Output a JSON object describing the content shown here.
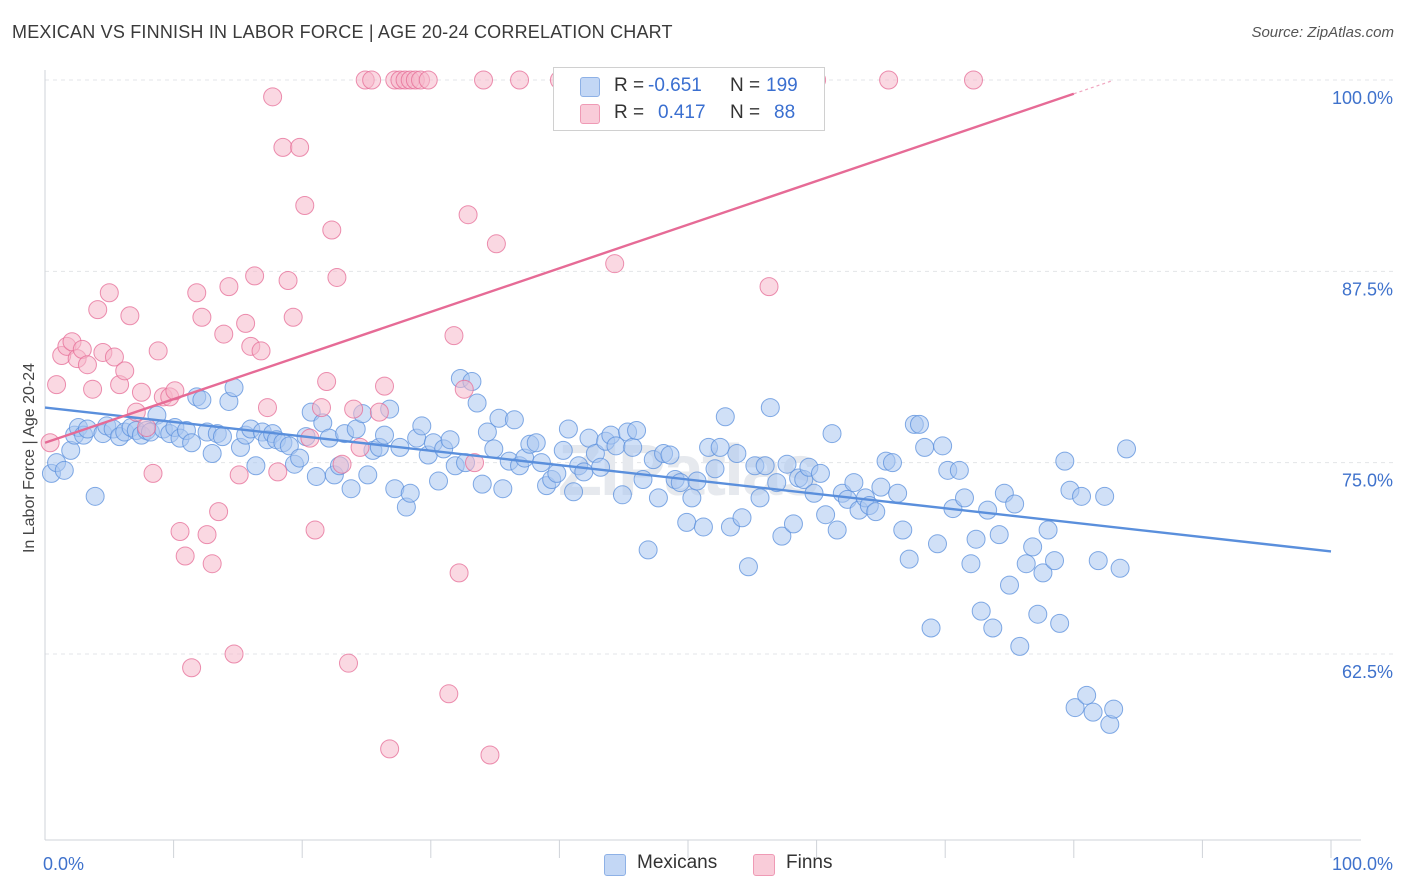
{
  "title": "MEXICAN VS FINNISH IN LABOR FORCE | AGE 20-24 CORRELATION CHART",
  "source": "Source: ZipAtlas.com",
  "watermark": "ZIPatlas",
  "legend": {
    "r_label": "R =",
    "n_label": "N =",
    "rows": [
      {
        "r": "-0.651",
        "n": "199",
        "color": "#a9c6f0"
      },
      {
        "r": "0.417",
        "n": "88",
        "color": "#f6b8cb"
      }
    ]
  },
  "bottom_legend": [
    {
      "label": "Mexicans",
      "color": "#a9c6f0"
    },
    {
      "label": "Finns",
      "color": "#f6b8cb"
    }
  ],
  "chart_data": {
    "type": "scatter",
    "title": "MEXICAN VS FINNISH IN LABOR FORCE | AGE 20-24 CORRELATION CHART",
    "xlabel": "",
    "ylabel": "In Labor Force | Age 20-24",
    "xlim": [
      0,
      100
    ],
    "ylim": [
      51.5,
      101
    ],
    "x_tick_labels": [
      "0.0%",
      "100.0%"
    ],
    "y_ticks": [
      62.5,
      75.0,
      87.5,
      100.0
    ],
    "y_tick_labels": [
      "62.5%",
      "75.0%",
      "87.5%",
      "100.0%"
    ],
    "grid": true,
    "legend_position": "top-center",
    "series": [
      {
        "name": "Mexicans",
        "color": "#5a8fdc",
        "fill": "#a9c6f0",
        "trend": {
          "x": [
            0,
            100
          ],
          "y": [
            78.6,
            69.2
          ]
        },
        "points": [
          [
            0.5,
            74.3
          ],
          [
            0.9,
            75.0
          ],
          [
            1.5,
            74.5
          ],
          [
            2.0,
            75.8
          ],
          [
            2.3,
            76.8
          ],
          [
            2.6,
            77.3
          ],
          [
            3.0,
            76.8
          ],
          [
            3.3,
            77.2
          ],
          [
            3.9,
            72.8
          ],
          [
            4.5,
            76.9
          ],
          [
            4.8,
            77.4
          ],
          [
            5.3,
            77.2
          ],
          [
            5.8,
            76.7
          ],
          [
            6.2,
            77.0
          ],
          [
            6.7,
            77.3
          ],
          [
            7.1,
            77.1
          ],
          [
            7.5,
            76.8
          ],
          [
            7.9,
            77.1
          ],
          [
            8.2,
            77.0
          ],
          [
            8.7,
            78.1
          ],
          [
            9.2,
            77.2
          ],
          [
            9.7,
            76.9
          ],
          [
            10.1,
            77.3
          ],
          [
            10.5,
            76.6
          ],
          [
            11.0,
            77.1
          ],
          [
            11.4,
            76.3
          ],
          [
            11.8,
            79.3
          ],
          [
            12.2,
            79.1
          ],
          [
            12.6,
            77.0
          ],
          [
            13.0,
            75.6
          ],
          [
            13.4,
            76.9
          ],
          [
            13.8,
            76.7
          ],
          [
            14.3,
            79.0
          ],
          [
            14.7,
            79.9
          ],
          [
            15.2,
            76.0
          ],
          [
            15.6,
            76.8
          ],
          [
            16.0,
            77.2
          ],
          [
            16.4,
            74.8
          ],
          [
            16.9,
            77.0
          ],
          [
            17.3,
            76.5
          ],
          [
            17.7,
            76.9
          ],
          [
            18.0,
            76.5
          ],
          [
            18.5,
            76.3
          ],
          [
            19.0,
            76.1
          ],
          [
            19.4,
            74.9
          ],
          [
            19.8,
            75.3
          ],
          [
            20.3,
            76.7
          ],
          [
            20.7,
            78.3
          ],
          [
            21.1,
            74.1
          ],
          [
            21.6,
            77.6
          ],
          [
            22.1,
            76.6
          ],
          [
            22.5,
            74.2
          ],
          [
            22.9,
            74.8
          ],
          [
            23.3,
            76.9
          ],
          [
            23.8,
            73.3
          ],
          [
            24.2,
            77.2
          ],
          [
            24.7,
            78.2
          ],
          [
            25.1,
            74.2
          ],
          [
            25.5,
            75.8
          ],
          [
            26.0,
            76.0
          ],
          [
            26.4,
            76.8
          ],
          [
            26.8,
            78.5
          ],
          [
            27.2,
            73.3
          ],
          [
            27.6,
            76.0
          ],
          [
            28.1,
            72.1
          ],
          [
            28.4,
            73.0
          ],
          [
            28.9,
            76.6
          ],
          [
            29.3,
            77.4
          ],
          [
            29.8,
            75.5
          ],
          [
            30.2,
            76.3
          ],
          [
            30.6,
            73.8
          ],
          [
            31.0,
            75.9
          ],
          [
            31.5,
            76.5
          ],
          [
            31.9,
            74.8
          ],
          [
            32.3,
            80.5
          ],
          [
            32.7,
            75.0
          ],
          [
            33.2,
            80.3
          ],
          [
            33.6,
            78.9
          ],
          [
            34.0,
            73.6
          ],
          [
            34.4,
            77.0
          ],
          [
            34.9,
            75.9
          ],
          [
            35.3,
            77.9
          ],
          [
            35.6,
            73.3
          ],
          [
            36.1,
            75.1
          ],
          [
            36.5,
            77.8
          ],
          [
            36.9,
            74.8
          ],
          [
            37.3,
            75.3
          ],
          [
            37.7,
            76.2
          ],
          [
            38.2,
            76.3
          ],
          [
            38.6,
            75.0
          ],
          [
            39.0,
            73.5
          ],
          [
            39.4,
            73.9
          ],
          [
            39.8,
            74.3
          ],
          [
            40.3,
            75.8
          ],
          [
            40.7,
            77.2
          ],
          [
            41.1,
            73.1
          ],
          [
            41.5,
            74.8
          ],
          [
            41.9,
            74.4
          ],
          [
            42.3,
            76.6
          ],
          [
            42.8,
            75.6
          ],
          [
            43.2,
            74.7
          ],
          [
            43.6,
            76.4
          ],
          [
            44.0,
            76.8
          ],
          [
            44.4,
            76.1
          ],
          [
            44.9,
            72.9
          ],
          [
            45.3,
            77.0
          ],
          [
            45.7,
            76.0
          ],
          [
            46.0,
            77.1
          ],
          [
            46.5,
            73.9
          ],
          [
            46.9,
            69.3
          ],
          [
            47.3,
            75.2
          ],
          [
            47.7,
            72.7
          ],
          [
            48.1,
            75.6
          ],
          [
            48.6,
            75.5
          ],
          [
            49.0,
            73.9
          ],
          [
            49.4,
            73.7
          ],
          [
            49.9,
            71.1
          ],
          [
            50.3,
            72.7
          ],
          [
            50.7,
            73.8
          ],
          [
            51.2,
            70.8
          ],
          [
            51.6,
            76.0
          ],
          [
            52.1,
            74.6
          ],
          [
            52.5,
            76.0
          ],
          [
            52.9,
            78.0
          ],
          [
            53.3,
            70.8
          ],
          [
            53.8,
            75.6
          ],
          [
            54.2,
            71.4
          ],
          [
            54.7,
            68.2
          ],
          [
            55.2,
            74.8
          ],
          [
            55.6,
            72.7
          ],
          [
            56.0,
            74.8
          ],
          [
            56.4,
            78.6
          ],
          [
            56.9,
            73.7
          ],
          [
            57.3,
            70.2
          ],
          [
            57.7,
            74.9
          ],
          [
            58.2,
            71.0
          ],
          [
            58.6,
            74.0
          ],
          [
            59.0,
            73.9
          ],
          [
            59.4,
            74.7
          ],
          [
            59.8,
            73.0
          ],
          [
            60.3,
            74.3
          ],
          [
            60.7,
            71.6
          ],
          [
            61.2,
            76.9
          ],
          [
            61.6,
            70.6
          ],
          [
            62.0,
            73.0
          ],
          [
            62.4,
            72.6
          ],
          [
            62.9,
            73.7
          ],
          [
            63.3,
            71.9
          ],
          [
            63.8,
            72.7
          ],
          [
            64.1,
            72.2
          ],
          [
            64.6,
            71.8
          ],
          [
            65.0,
            73.4
          ],
          [
            65.4,
            75.1
          ],
          [
            65.9,
            75.0
          ],
          [
            66.3,
            73.0
          ],
          [
            66.7,
            70.6
          ],
          [
            67.2,
            68.7
          ],
          [
            67.6,
            77.5
          ],
          [
            68.0,
            77.5
          ],
          [
            68.4,
            76.0
          ],
          [
            68.9,
            64.2
          ],
          [
            69.4,
            69.7
          ],
          [
            69.8,
            76.1
          ],
          [
            70.2,
            74.5
          ],
          [
            70.6,
            72.0
          ],
          [
            71.1,
            74.5
          ],
          [
            71.5,
            72.7
          ],
          [
            72.0,
            68.4
          ],
          [
            72.4,
            70.0
          ],
          [
            72.8,
            65.3
          ],
          [
            73.3,
            71.9
          ],
          [
            73.7,
            64.2
          ],
          [
            74.2,
            70.3
          ],
          [
            74.6,
            73.0
          ],
          [
            75.0,
            67.0
          ],
          [
            75.4,
            72.3
          ],
          [
            75.8,
            63.0
          ],
          [
            76.3,
            68.4
          ],
          [
            76.8,
            69.5
          ],
          [
            77.2,
            65.1
          ],
          [
            77.6,
            67.8
          ],
          [
            78.0,
            70.6
          ],
          [
            78.5,
            68.6
          ],
          [
            78.9,
            64.5
          ],
          [
            79.3,
            75.1
          ],
          [
            79.7,
            73.2
          ],
          [
            80.1,
            59.0
          ],
          [
            80.6,
            72.8
          ],
          [
            81.0,
            59.8
          ],
          [
            81.5,
            58.7
          ],
          [
            81.9,
            68.6
          ],
          [
            82.4,
            72.8
          ],
          [
            82.8,
            57.9
          ],
          [
            83.1,
            58.9
          ],
          [
            83.6,
            68.1
          ],
          [
            84.1,
            75.9
          ]
        ]
      },
      {
        "name": "Finns",
        "color": "#e66b96",
        "fill": "#f6b8cb",
        "trend": {
          "x": [
            0,
            80
          ],
          "y": [
            76.3,
            99.1
          ]
        },
        "points": [
          [
            0.4,
            76.3
          ],
          [
            0.9,
            80.1
          ],
          [
            1.3,
            82.0
          ],
          [
            1.7,
            82.6
          ],
          [
            2.1,
            82.9
          ],
          [
            2.5,
            81.8
          ],
          [
            2.9,
            82.4
          ],
          [
            3.3,
            81.4
          ],
          [
            3.7,
            79.8
          ],
          [
            4.1,
            85.0
          ],
          [
            4.5,
            82.2
          ],
          [
            5.0,
            86.1
          ],
          [
            5.4,
            81.9
          ],
          [
            5.8,
            80.1
          ],
          [
            6.2,
            81.0
          ],
          [
            6.6,
            84.6
          ],
          [
            7.1,
            78.3
          ],
          [
            7.5,
            79.6
          ],
          [
            7.9,
            77.3
          ],
          [
            8.4,
            74.3
          ],
          [
            8.8,
            82.3
          ],
          [
            9.2,
            79.3
          ],
          [
            9.7,
            79.3
          ],
          [
            10.1,
            79.7
          ],
          [
            10.5,
            70.5
          ],
          [
            10.9,
            68.9
          ],
          [
            11.4,
            61.6
          ],
          [
            11.8,
            86.1
          ],
          [
            12.2,
            84.5
          ],
          [
            12.6,
            70.3
          ],
          [
            13.0,
            68.4
          ],
          [
            13.5,
            71.8
          ],
          [
            13.9,
            83.4
          ],
          [
            14.3,
            86.5
          ],
          [
            14.7,
            62.5
          ],
          [
            15.1,
            74.2
          ],
          [
            15.6,
            84.1
          ],
          [
            16.0,
            82.6
          ],
          [
            16.3,
            87.2
          ],
          [
            16.8,
            82.3
          ],
          [
            17.3,
            78.6
          ],
          [
            17.7,
            98.9
          ],
          [
            18.1,
            74.4
          ],
          [
            18.5,
            95.6
          ],
          [
            18.9,
            86.9
          ],
          [
            19.3,
            84.5
          ],
          [
            19.8,
            95.6
          ],
          [
            20.2,
            91.8
          ],
          [
            20.6,
            76.6
          ],
          [
            21.0,
            70.6
          ],
          [
            21.5,
            78.6
          ],
          [
            21.9,
            80.3
          ],
          [
            22.3,
            90.2
          ],
          [
            22.7,
            87.1
          ],
          [
            23.1,
            74.9
          ],
          [
            23.6,
            61.9
          ],
          [
            24.0,
            78.5
          ],
          [
            24.5,
            76.0
          ],
          [
            24.9,
            100.0
          ],
          [
            25.4,
            100.0
          ],
          [
            26.0,
            78.3
          ],
          [
            26.4,
            80.0
          ],
          [
            26.8,
            56.3
          ],
          [
            27.2,
            100.0
          ],
          [
            27.6,
            100.0
          ],
          [
            28.0,
            100.0
          ],
          [
            28.4,
            100.0
          ],
          [
            28.8,
            100.0
          ],
          [
            29.2,
            100.0
          ],
          [
            29.8,
            100.0
          ],
          [
            31.4,
            59.9
          ],
          [
            31.8,
            83.3
          ],
          [
            32.2,
            67.8
          ],
          [
            32.6,
            79.8
          ],
          [
            32.9,
            91.2
          ],
          [
            33.4,
            75.0
          ],
          [
            34.1,
            100.0
          ],
          [
            34.6,
            55.9
          ],
          [
            35.1,
            89.3
          ],
          [
            36.9,
            100.0
          ],
          [
            40.0,
            100.0
          ],
          [
            44.3,
            88.0
          ],
          [
            49.4,
            100.0
          ],
          [
            53.1,
            100.0
          ],
          [
            56.3,
            86.5
          ],
          [
            60.0,
            100.0
          ],
          [
            65.6,
            100.0
          ],
          [
            72.2,
            100.0
          ]
        ]
      }
    ]
  }
}
